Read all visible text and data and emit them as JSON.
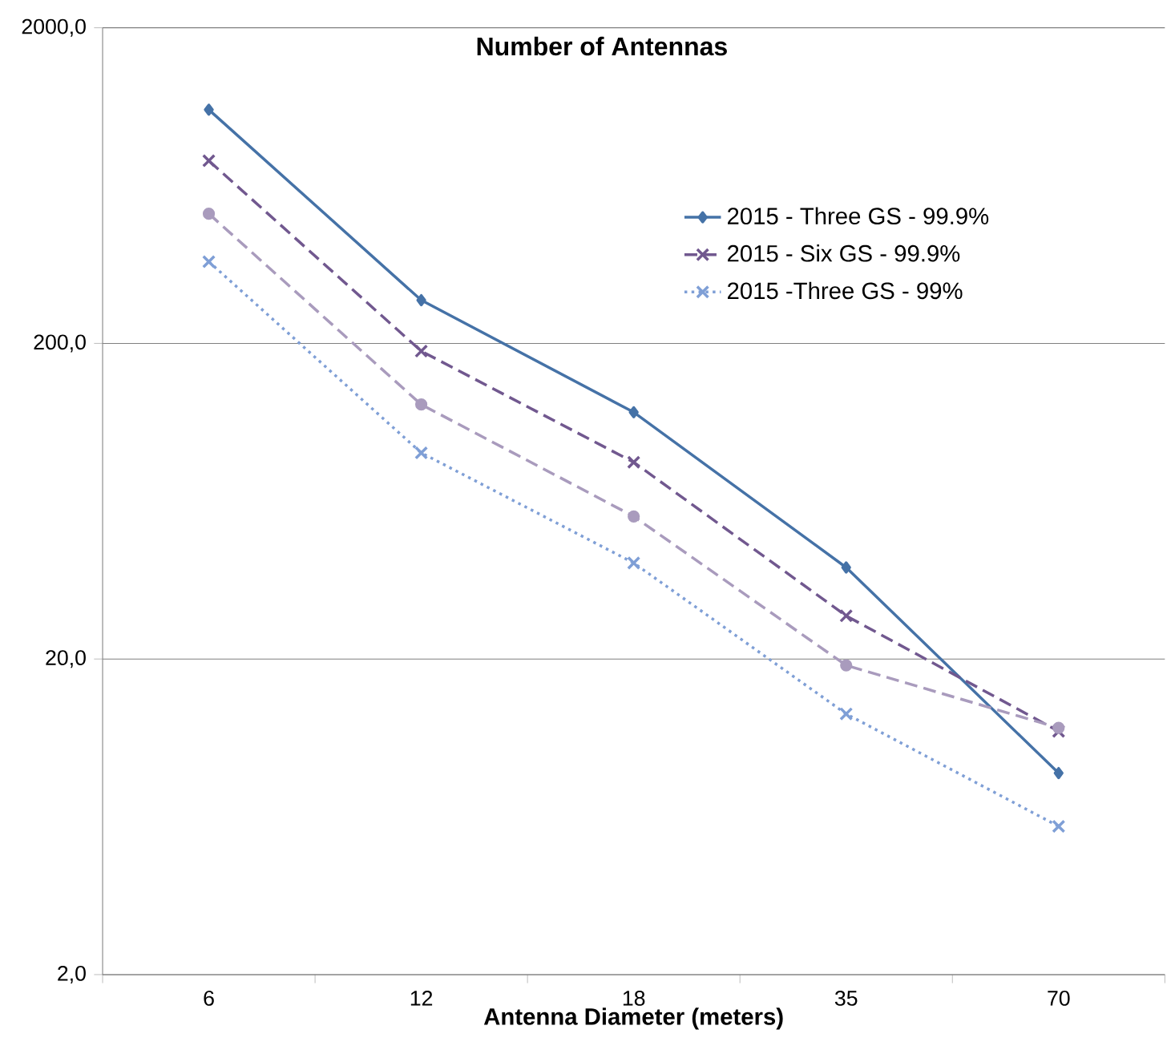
{
  "chart_data": {
    "type": "line",
    "title": "Number of Antennas",
    "xlabel": "Antenna Diameter (meters)",
    "categories": [
      "6",
      "12",
      "18",
      "35",
      "70"
    ],
    "series": [
      {
        "name": "2015 - Three GS - 99.9%",
        "color": "#4572a7",
        "marker": "diamond",
        "line_style": "solid",
        "values": [
          1100,
          274,
          121,
          39,
          8.7
        ]
      },
      {
        "name": "2015 - Six GS - 99.9%",
        "color": "#71588f",
        "marker": "cross",
        "line_style": "dashed",
        "values": [
          758,
          189,
          84,
          27.4,
          11.8
        ]
      },
      {
        "name": "2015 -Three GS - 99%",
        "color": "#7f9fd6",
        "marker": "cross",
        "line_style": "dotted",
        "values": [
          363,
          90,
          40.3,
          13.4,
          5.9
        ]
      },
      {
        "color": "#a99bbd",
        "marker": "circle",
        "line_style": "dashed",
        "values": [
          515,
          128,
          56.6,
          19.1,
          12.1
        ]
      }
    ],
    "log": true,
    "ylim": [
      2,
      2000
    ],
    "yticks": [
      {
        "value": 2,
        "label": "2,0"
      },
      {
        "value": 20,
        "label": "20,0"
      },
      {
        "value": 200,
        "label": "200,0"
      },
      {
        "value": 2000,
        "label": "2000,0"
      }
    ],
    "grid": "y",
    "legend": "top right"
  }
}
